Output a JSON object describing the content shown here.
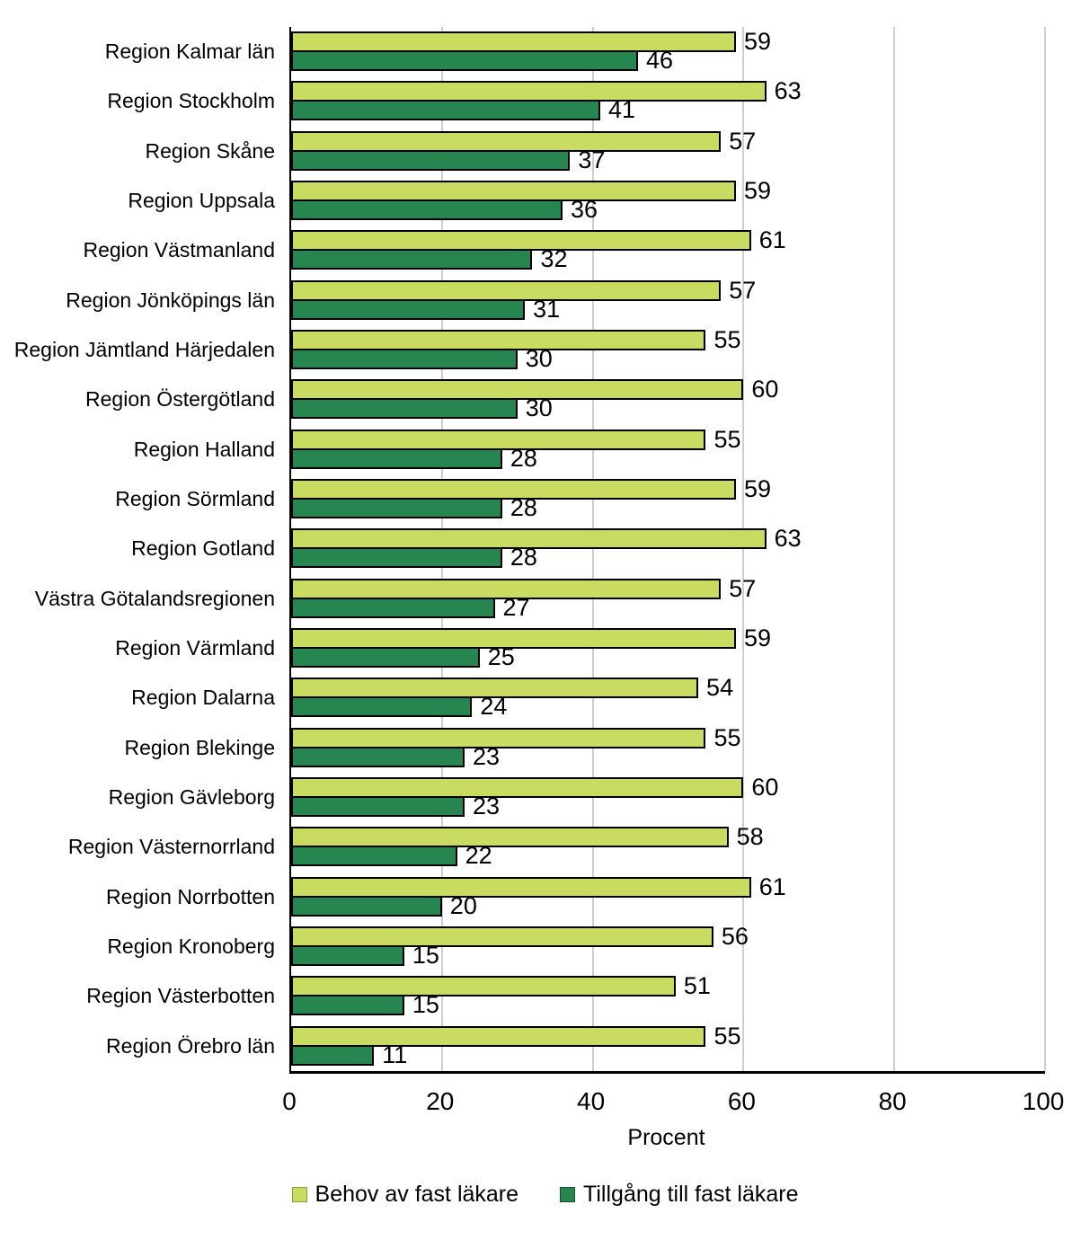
{
  "chart_data": {
    "type": "bar",
    "orientation": "horizontal",
    "title": "",
    "xlabel": "Procent",
    "ylabel": "",
    "xlim": [
      0,
      100
    ],
    "x_ticks": [
      0,
      20,
      40,
      60,
      80,
      100
    ],
    "grid": true,
    "bar_value_labels": true,
    "legend_position": "bottom",
    "categories": [
      "Region Kalmar län",
      "Region Stockholm",
      "Region Skåne",
      "Region Uppsala",
      "Region Västmanland",
      "Region Jönköpings län",
      "Region Jämtland Härjedalen",
      "Region Östergötland",
      "Region Halland",
      "Region Sörmland",
      "Region Gotland",
      "Västra Götalandsregionen",
      "Region Värmland",
      "Region Dalarna",
      "Region Blekinge",
      "Region Gävleborg",
      "Region Västernorrland",
      "Region Norrbotten",
      "Region Kronoberg",
      "Region Västerbotten",
      "Region Örebro län"
    ],
    "series": [
      {
        "name": "Behov av fast läkare",
        "color": "#cadb62",
        "values": [
          59,
          63,
          57,
          59,
          61,
          57,
          55,
          60,
          55,
          59,
          63,
          57,
          59,
          54,
          55,
          60,
          58,
          61,
          56,
          51,
          55
        ]
      },
      {
        "name": "Tillgång till fast läkare",
        "color": "#278550",
        "values": [
          46,
          41,
          37,
          36,
          32,
          31,
          30,
          30,
          28,
          28,
          28,
          27,
          25,
          24,
          23,
          23,
          22,
          20,
          15,
          15,
          11
        ]
      }
    ]
  },
  "colors": {
    "background": "#ffffff",
    "bar_border": "#000000",
    "gridline": "#9e9e9e",
    "axis_line": "#000000",
    "text": "#000000"
  }
}
